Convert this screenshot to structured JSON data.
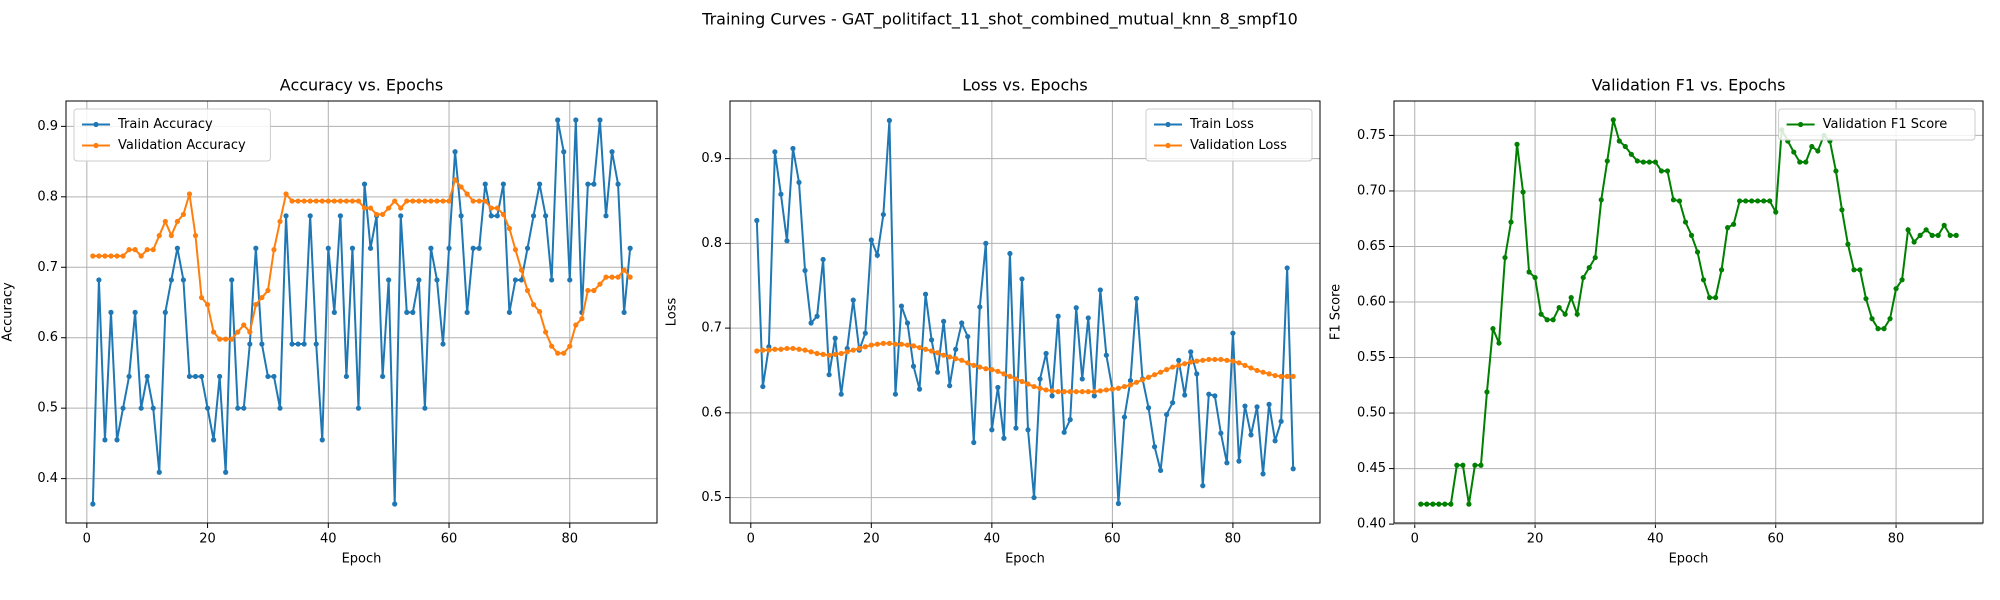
{
  "title": "Training Curves - GAT_politifact_11_shot_combined_mutual_knn_8_smpf10",
  "chart_data": [
    {
      "type": "line",
      "title": "Accuracy vs. Epochs",
      "x_label": "Epoch",
      "y_label": "Accuracy",
      "x": [
        1,
        2,
        3,
        4,
        5,
        6,
        7,
        8,
        9,
        10,
        11,
        12,
        13,
        14,
        15,
        16,
        17,
        18,
        19,
        20,
        21,
        22,
        23,
        24,
        25,
        26,
        27,
        28,
        29,
        30,
        31,
        32,
        33,
        34,
        35,
        36,
        37,
        38,
        39,
        40,
        41,
        42,
        43,
        44,
        45,
        46,
        47,
        48,
        49,
        50,
        51,
        52,
        53,
        54,
        55,
        56,
        57,
        58,
        59,
        60,
        61,
        62,
        63,
        64,
        65,
        66,
        67,
        68,
        69,
        70,
        71,
        72,
        73,
        74,
        75,
        76,
        77,
        78,
        79,
        80,
        81,
        82,
        83,
        84,
        85,
        86,
        87,
        88,
        89,
        90
      ],
      "series": [
        {
          "name": "Train Accuracy",
          "color": "#1f77b4",
          "values": [
            0.364,
            0.682,
            0.455,
            0.636,
            0.455,
            0.5,
            0.545,
            0.636,
            0.5,
            0.545,
            0.5,
            0.409,
            0.636,
            0.682,
            0.727,
            0.682,
            0.545,
            0.545,
            0.545,
            0.5,
            0.455,
            0.545,
            0.409,
            0.682,
            0.5,
            0.5,
            0.591,
            0.727,
            0.591,
            0.545,
            0.545,
            0.5,
            0.773,
            0.591,
            0.591,
            0.591,
            0.773,
            0.591,
            0.455,
            0.727,
            0.636,
            0.773,
            0.545,
            0.727,
            0.5,
            0.818,
            0.727,
            0.773,
            0.545,
            0.682,
            0.364,
            0.773,
            0.636,
            0.636,
            0.682,
            0.5,
            0.727,
            0.682,
            0.591,
            0.727,
            0.864,
            0.773,
            0.636,
            0.727,
            0.727,
            0.818,
            0.773,
            0.773,
            0.818,
            0.636,
            0.682,
            0.682,
            0.727,
            0.773,
            0.818,
            0.773,
            0.682,
            0.909,
            0.864,
            0.682,
            0.909,
            0.636,
            0.818,
            0.818,
            0.909,
            0.773,
            0.864,
            0.818,
            0.636,
            0.727
          ]
        },
        {
          "name": "Validation Accuracy",
          "color": "#ff7f0e",
          "values": [
            0.716,
            0.716,
            0.716,
            0.716,
            0.716,
            0.716,
            0.725,
            0.725,
            0.716,
            0.725,
            0.725,
            0.745,
            0.765,
            0.745,
            0.765,
            0.775,
            0.804,
            0.745,
            0.657,
            0.647,
            0.608,
            0.598,
            0.598,
            0.598,
            0.608,
            0.618,
            0.608,
            0.647,
            0.657,
            0.667,
            0.725,
            0.765,
            0.804,
            0.794,
            0.794,
            0.794,
            0.794,
            0.794,
            0.794,
            0.794,
            0.794,
            0.794,
            0.794,
            0.794,
            0.794,
            0.784,
            0.784,
            0.775,
            0.775,
            0.784,
            0.794,
            0.784,
            0.794,
            0.794,
            0.794,
            0.794,
            0.794,
            0.794,
            0.794,
            0.794,
            0.824,
            0.814,
            0.804,
            0.794,
            0.794,
            0.794,
            0.784,
            0.784,
            0.775,
            0.755,
            0.725,
            0.696,
            0.667,
            0.647,
            0.637,
            0.608,
            0.588,
            0.578,
            0.578,
            0.588,
            0.618,
            0.627,
            0.667,
            0.667,
            0.676,
            0.686,
            0.686,
            0.686,
            0.696,
            0.686
          ]
        }
      ],
      "xlim": [
        -3.45,
        94.45
      ],
      "xticks": [
        0,
        20,
        40,
        60,
        80
      ],
      "ylim": [
        0.337,
        0.936
      ],
      "yticks": [
        0.4,
        0.5,
        0.6,
        0.7,
        0.8,
        0.9
      ],
      "grid": true,
      "legend": "upper left"
    },
    {
      "type": "line",
      "title": "Loss vs. Epochs",
      "x_label": "Epoch",
      "y_label": "Loss",
      "x": [
        1,
        2,
        3,
        4,
        5,
        6,
        7,
        8,
        9,
        10,
        11,
        12,
        13,
        14,
        15,
        16,
        17,
        18,
        19,
        20,
        21,
        22,
        23,
        24,
        25,
        26,
        27,
        28,
        29,
        30,
        31,
        32,
        33,
        34,
        35,
        36,
        37,
        38,
        39,
        40,
        41,
        42,
        43,
        44,
        45,
        46,
        47,
        48,
        49,
        50,
        51,
        52,
        53,
        54,
        55,
        56,
        57,
        58,
        59,
        60,
        61,
        62,
        63,
        64,
        65,
        66,
        67,
        68,
        69,
        70,
        71,
        72,
        73,
        74,
        75,
        76,
        77,
        78,
        79,
        80,
        81,
        82,
        83,
        84,
        85,
        86,
        87,
        88,
        89,
        90
      ],
      "series": [
        {
          "name": "Train Loss",
          "color": "#1f77b4",
          "values": [
            0.827,
            0.631,
            0.678,
            0.908,
            0.858,
            0.803,
            0.912,
            0.872,
            0.768,
            0.706,
            0.714,
            0.781,
            0.645,
            0.688,
            0.622,
            0.676,
            0.733,
            0.674,
            0.694,
            0.804,
            0.786,
            0.834,
            0.945,
            0.622,
            0.726,
            0.706,
            0.655,
            0.628,
            0.74,
            0.686,
            0.648,
            0.708,
            0.632,
            0.675,
            0.706,
            0.69,
            0.565,
            0.725,
            0.8,
            0.58,
            0.63,
            0.57,
            0.788,
            0.582,
            0.758,
            0.58,
            0.5,
            0.64,
            0.67,
            0.62,
            0.714,
            0.577,
            0.592,
            0.724,
            0.64,
            0.712,
            0.62,
            0.745,
            0.668,
            0.628,
            0.493,
            0.595,
            0.638,
            0.735,
            0.64,
            0.606,
            0.56,
            0.532,
            0.598,
            0.612,
            0.662,
            0.621,
            0.672,
            0.646,
            0.514,
            0.622,
            0.62,
            0.576,
            0.541,
            0.694,
            0.543,
            0.608,
            0.574,
            0.607,
            0.528,
            0.61,
            0.567,
            0.59,
            0.771,
            0.534
          ]
        },
        {
          "name": "Validation Loss",
          "color": "#ff7f0e",
          "values": [
            0.673,
            0.674,
            0.674,
            0.675,
            0.675,
            0.676,
            0.676,
            0.675,
            0.674,
            0.672,
            0.67,
            0.669,
            0.668,
            0.669,
            0.67,
            0.672,
            0.674,
            0.676,
            0.678,
            0.68,
            0.681,
            0.682,
            0.682,
            0.681,
            0.681,
            0.68,
            0.679,
            0.677,
            0.675,
            0.673,
            0.671,
            0.668,
            0.666,
            0.664,
            0.662,
            0.659,
            0.656,
            0.654,
            0.652,
            0.651,
            0.649,
            0.646,
            0.643,
            0.64,
            0.637,
            0.634,
            0.631,
            0.629,
            0.627,
            0.626,
            0.625,
            0.625,
            0.625,
            0.625,
            0.625,
            0.625,
            0.625,
            0.626,
            0.627,
            0.628,
            0.629,
            0.631,
            0.633,
            0.636,
            0.639,
            0.642,
            0.645,
            0.648,
            0.651,
            0.654,
            0.656,
            0.658,
            0.66,
            0.661,
            0.662,
            0.663,
            0.663,
            0.663,
            0.662,
            0.661,
            0.659,
            0.656,
            0.653,
            0.65,
            0.648,
            0.646,
            0.644,
            0.643,
            0.643,
            0.643
          ]
        }
      ],
      "xlim": [
        -3.45,
        94.45
      ],
      "xticks": [
        0,
        20,
        40,
        60,
        80
      ],
      "ylim": [
        0.47,
        0.968
      ],
      "yticks": [
        0.5,
        0.6,
        0.7,
        0.8,
        0.9
      ],
      "grid": true,
      "legend": "upper right"
    },
    {
      "type": "line",
      "title": "Validation F1 vs. Epochs",
      "x_label": "Epoch",
      "y_label": "F1 Score",
      "x": [
        1,
        2,
        3,
        4,
        5,
        6,
        7,
        8,
        9,
        10,
        11,
        12,
        13,
        14,
        15,
        16,
        17,
        18,
        19,
        20,
        21,
        22,
        23,
        24,
        25,
        26,
        27,
        28,
        29,
        30,
        31,
        32,
        33,
        34,
        35,
        36,
        37,
        38,
        39,
        40,
        41,
        42,
        43,
        44,
        45,
        46,
        47,
        48,
        49,
        50,
        51,
        52,
        53,
        54,
        55,
        56,
        57,
        58,
        59,
        60,
        61,
        62,
        63,
        64,
        65,
        66,
        67,
        68,
        69,
        70,
        71,
        72,
        73,
        74,
        75,
        76,
        77,
        78,
        79,
        80,
        81,
        82,
        83,
        84,
        85,
        86,
        87,
        88,
        89,
        90
      ],
      "series": [
        {
          "name": "Validation F1 Score",
          "color": "#008000",
          "values": [
            0.418,
            0.418,
            0.418,
            0.418,
            0.418,
            0.418,
            0.453,
            0.453,
            0.418,
            0.453,
            0.453,
            0.519,
            0.576,
            0.563,
            0.64,
            0.672,
            0.742,
            0.699,
            0.627,
            0.622,
            0.589,
            0.584,
            0.584,
            0.595,
            0.589,
            0.604,
            0.589,
            0.622,
            0.631,
            0.64,
            0.692,
            0.727,
            0.764,
            0.745,
            0.74,
            0.733,
            0.727,
            0.726,
            0.726,
            0.726,
            0.718,
            0.718,
            0.692,
            0.691,
            0.672,
            0.66,
            0.645,
            0.62,
            0.604,
            0.604,
            0.629,
            0.667,
            0.67,
            0.691,
            0.691,
            0.691,
            0.691,
            0.691,
            0.691,
            0.681,
            0.755,
            0.745,
            0.735,
            0.726,
            0.726,
            0.74,
            0.736,
            0.75,
            0.745,
            0.718,
            0.683,
            0.652,
            0.629,
            0.629,
            0.603,
            0.585,
            0.576,
            0.576,
            0.585,
            0.612,
            0.62,
            0.665,
            0.654,
            0.66,
            0.665,
            0.66,
            0.66,
            0.669,
            0.66,
            0.66
          ]
        }
      ],
      "xlim": [
        -3.45,
        94.45
      ],
      "xticks": [
        0,
        20,
        40,
        60,
        80
      ],
      "ylim": [
        0.401,
        0.781
      ],
      "yticks": [
        {
          "value": 0.4,
          "label": "0.40"
        },
        {
          "value": 0.45,
          "label": "0.45"
        },
        {
          "value": 0.5,
          "label": "0.50"
        },
        {
          "value": 0.55,
          "label": "0.55"
        },
        {
          "value": 0.6,
          "label": "0.60"
        },
        {
          "value": 0.65,
          "label": "0.65"
        },
        {
          "value": 0.7,
          "label": "0.70"
        },
        {
          "value": 0.75,
          "label": "0.75"
        }
      ],
      "grid": true,
      "legend": "upper right"
    }
  ]
}
